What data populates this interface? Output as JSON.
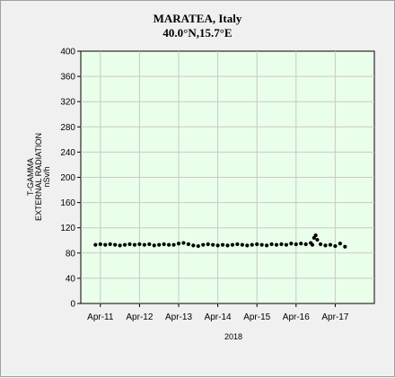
{
  "chart_data": {
    "type": "scatter",
    "title": "MARATEA, Italy",
    "subtitle": "40.0°N,15.7°E",
    "xlabel": "2018",
    "ylabel_lines": [
      "T-GAMMA",
      "EXTERNAL RADIATION",
      "nSv/h"
    ],
    "ylim": [
      0,
      400
    ],
    "yticks": [
      0,
      40,
      80,
      120,
      160,
      200,
      240,
      280,
      320,
      360,
      400
    ],
    "xlim": [
      "2018-04-10 12:00",
      "2018-04-18 00:00"
    ],
    "xtick_labels": [
      "Apr-11",
      "Apr-12",
      "Apr-13",
      "Apr-14",
      "Apr-15",
      "Apr-16",
      "Apr-17"
    ],
    "xtick_dates": [
      "2018-04-11",
      "2018-04-12",
      "2018-04-13",
      "2018-04-14",
      "2018-04-15",
      "2018-04-16",
      "2018-04-17"
    ],
    "grid": true,
    "plot_background": "#eaffea",
    "grid_color": "#c8c8c8",
    "marker_color": "#000000",
    "series": [
      {
        "x": [
          "2018-04-10 21:00",
          "2018-04-11 00:00",
          "2018-04-11 03:00",
          "2018-04-11 06:00",
          "2018-04-11 09:00",
          "2018-04-11 12:00",
          "2018-04-11 15:00",
          "2018-04-11 18:00",
          "2018-04-11 21:00",
          "2018-04-12 00:00",
          "2018-04-12 03:00",
          "2018-04-12 06:00",
          "2018-04-12 09:00",
          "2018-04-12 12:00",
          "2018-04-12 15:00",
          "2018-04-12 18:00",
          "2018-04-12 21:00",
          "2018-04-13 00:00",
          "2018-04-13 03:00",
          "2018-04-13 06:00",
          "2018-04-13 09:00",
          "2018-04-13 12:00",
          "2018-04-13 15:00",
          "2018-04-13 18:00",
          "2018-04-13 21:00",
          "2018-04-14 00:00",
          "2018-04-14 03:00",
          "2018-04-14 06:00",
          "2018-04-14 09:00",
          "2018-04-14 12:00",
          "2018-04-14 15:00",
          "2018-04-14 18:00",
          "2018-04-14 21:00",
          "2018-04-15 00:00",
          "2018-04-15 03:00",
          "2018-04-15 06:00",
          "2018-04-15 09:00",
          "2018-04-15 12:00",
          "2018-04-15 15:00",
          "2018-04-15 18:00",
          "2018-04-15 21:00",
          "2018-04-16 00:00",
          "2018-04-16 03:00",
          "2018-04-16 06:00",
          "2018-04-16 09:00",
          "2018-04-16 10:00",
          "2018-04-16 11:00",
          "2018-04-16 12:00",
          "2018-04-16 13:00",
          "2018-04-16 15:00",
          "2018-04-16 18:00",
          "2018-04-16 21:00",
          "2018-04-17 00:00",
          "2018-04-17 03:00",
          "2018-04-17 06:00"
        ],
        "y": [
          93,
          94,
          93,
          94,
          93,
          92,
          93,
          94,
          93,
          94,
          93,
          94,
          92,
          93,
          94,
          93,
          93,
          95,
          96,
          94,
          92,
          91,
          93,
          94,
          93,
          92,
          93,
          92,
          93,
          94,
          93,
          92,
          93,
          94,
          93,
          92,
          94,
          93,
          94,
          93,
          95,
          94,
          95,
          94,
          96,
          93,
          104,
          108,
          101,
          94,
          92,
          93,
          91,
          95,
          90
        ]
      }
    ]
  }
}
